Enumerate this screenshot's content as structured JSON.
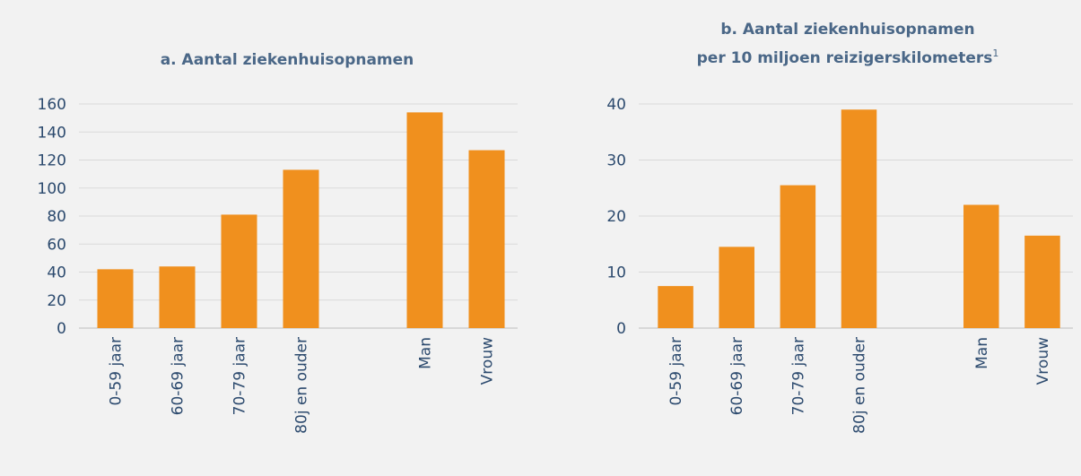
{
  "chart_data": [
    {
      "type": "bar",
      "title": [
        "a. Aantal ziekenhuisopnamen"
      ],
      "categories": [
        "0-59 jaar",
        "60-69 jaar",
        "70-79 jaar",
        "80j en ouder",
        null,
        "Man",
        "Vrouw"
      ],
      "values": [
        42,
        44,
        81,
        113,
        null,
        154,
        127
      ],
      "color": "#f0901e",
      "ylim": [
        0,
        160
      ],
      "yticks": [
        0,
        20,
        40,
        60,
        80,
        100,
        120,
        140,
        160
      ],
      "grid": true
    },
    {
      "type": "bar",
      "title": [
        "b. Aantal ziekenhuisopnamen",
        "per 10 miljoen reizigerskilometers"
      ],
      "title_note": "1",
      "categories": [
        "0-59 jaar",
        "60-69 jaar",
        "70-79 jaar",
        "80j en ouder",
        null,
        "Man",
        "Vrouw"
      ],
      "values": [
        7.5,
        14.5,
        25.5,
        39,
        null,
        22,
        16.5
      ],
      "color": "#f0901e",
      "ylim": [
        0,
        40
      ],
      "yticks": [
        0,
        10,
        20,
        30,
        40
      ],
      "grid": true
    }
  ]
}
